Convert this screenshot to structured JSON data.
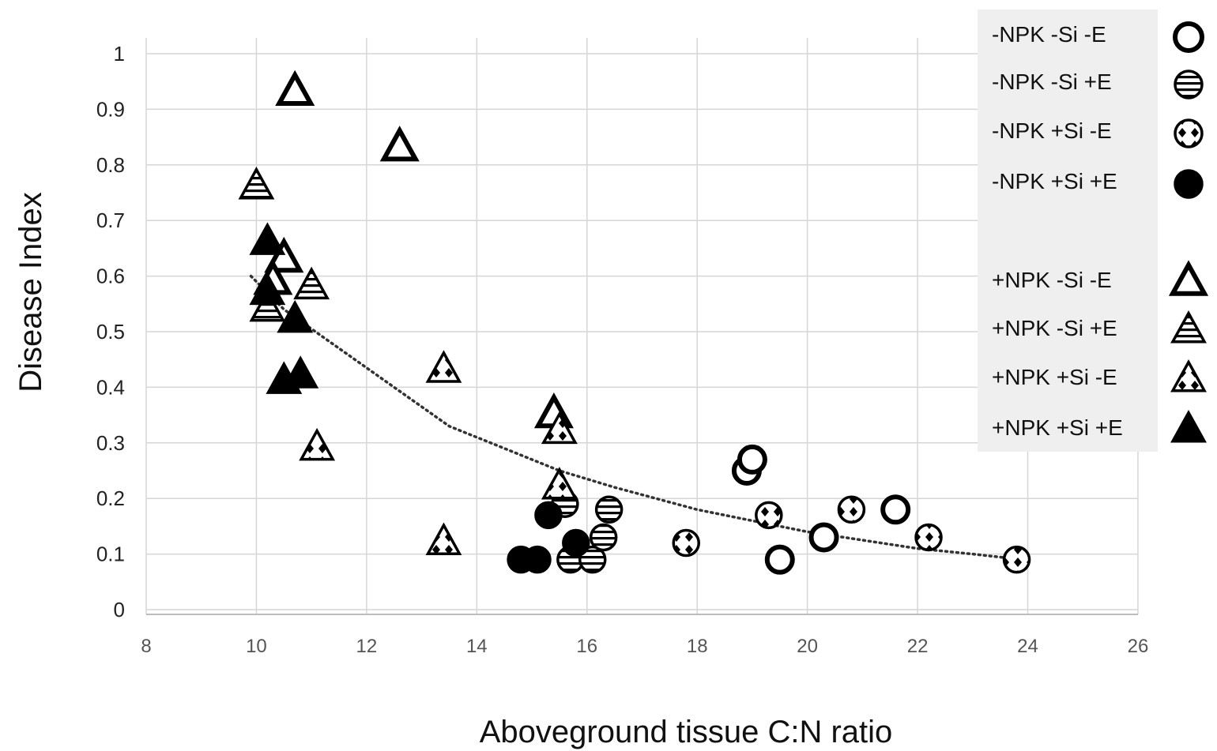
{
  "chart_data": {
    "type": "scatter",
    "xlabel": "Aboveground tissue C:N ratio",
    "ylabel": "Disease Index",
    "xlim": [
      8,
      26
    ],
    "ylim": [
      0,
      1
    ],
    "x_ticks": [
      "8",
      "10",
      "12",
      "14",
      "16",
      "18",
      "20",
      "22",
      "24",
      "26"
    ],
    "y_ticks": [
      "0",
      "0.1",
      "0.2",
      "0.3",
      "0.4",
      "0.5",
      "0.6",
      "0.7",
      "0.8",
      "0.9",
      "1"
    ],
    "grid": true,
    "legend_position": "top-right",
    "trendline": {
      "style": "dotted",
      "points": [
        [
          9.9,
          0.6
        ],
        [
          10.5,
          0.54
        ],
        [
          11.5,
          0.47
        ],
        [
          12.5,
          0.4
        ],
        [
          13.5,
          0.33
        ],
        [
          14.5,
          0.29
        ],
        [
          15.5,
          0.25
        ],
        [
          16.5,
          0.22
        ],
        [
          18,
          0.18
        ],
        [
          19,
          0.16
        ],
        [
          20,
          0.14
        ],
        [
          21,
          0.125
        ],
        [
          22,
          0.11
        ],
        [
          23,
          0.1
        ],
        [
          23.9,
          0.09
        ]
      ]
    },
    "series": [
      {
        "name": "-NPK -Si -E",
        "marker": "circle",
        "fill": "open",
        "points": [
          [
            18.9,
            0.25
          ],
          [
            19.0,
            0.27
          ],
          [
            19.5,
            0.09
          ],
          [
            20.3,
            0.13
          ],
          [
            21.6,
            0.18
          ]
        ]
      },
      {
        "name": "-NPK -Si +E",
        "marker": "circle",
        "fill": "striped",
        "points": [
          [
            15.6,
            0.19
          ],
          [
            15.7,
            0.09
          ],
          [
            16.1,
            0.09
          ],
          [
            16.3,
            0.13
          ],
          [
            16.4,
            0.18
          ]
        ]
      },
      {
        "name": "-NPK +Si -E",
        "marker": "circle",
        "fill": "checkered",
        "points": [
          [
            17.8,
            0.12
          ],
          [
            19.3,
            0.17
          ],
          [
            20.8,
            0.18
          ],
          [
            22.2,
            0.13
          ],
          [
            23.8,
            0.09
          ]
        ]
      },
      {
        "name": "-NPK +Si +E",
        "marker": "circle",
        "fill": "solid",
        "points": [
          [
            14.8,
            0.09
          ],
          [
            15.1,
            0.09
          ],
          [
            15.3,
            0.17
          ],
          [
            15.8,
            0.12
          ]
        ]
      },
      {
        "name": "+NPK -Si -E",
        "marker": "triangle",
        "fill": "open",
        "points": [
          [
            10.7,
            0.93
          ],
          [
            12.6,
            0.83
          ],
          [
            10.5,
            0.63
          ],
          [
            10.3,
            0.59
          ],
          [
            15.4,
            0.35
          ]
        ]
      },
      {
        "name": "+NPK -Si +E",
        "marker": "triangle",
        "fill": "striped",
        "points": [
          [
            10.0,
            0.76
          ],
          [
            10.2,
            0.54
          ],
          [
            11.0,
            0.58
          ]
        ]
      },
      {
        "name": "+NPK +Si -E",
        "marker": "triangle",
        "fill": "checkered",
        "points": [
          [
            13.4,
            0.43
          ],
          [
            15.5,
            0.32
          ],
          [
            15.5,
            0.22
          ],
          [
            13.4,
            0.12
          ],
          [
            11.1,
            0.29
          ]
        ]
      },
      {
        "name": "+NPK +Si +E",
        "marker": "triangle",
        "fill": "solid",
        "points": [
          [
            10.2,
            0.66
          ],
          [
            10.2,
            0.57
          ],
          [
            10.7,
            0.52
          ],
          [
            10.5,
            0.41
          ],
          [
            10.8,
            0.42
          ]
        ]
      }
    ]
  }
}
